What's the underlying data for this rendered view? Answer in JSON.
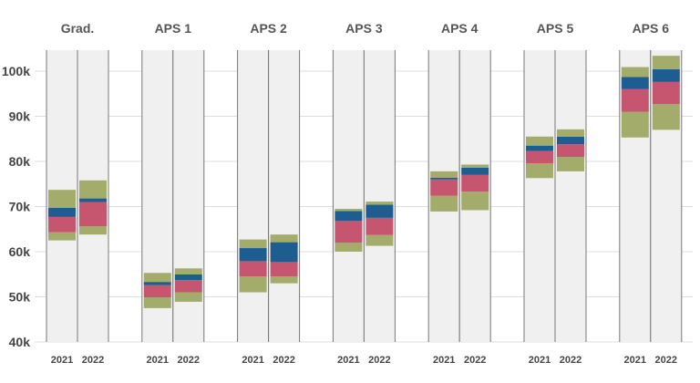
{
  "chart_data": {
    "type": "stacked-range-bar",
    "title": "",
    "xlabel": "",
    "ylabel": "",
    "ylim": [
      40000,
      105000
    ],
    "y_ticks": [
      {
        "value": 40000,
        "label": "40k"
      },
      {
        "value": 50000,
        "label": "50k"
      },
      {
        "value": 60000,
        "label": "60k"
      },
      {
        "value": 70000,
        "label": "70k"
      },
      {
        "value": 80000,
        "label": "80k"
      },
      {
        "value": 90000,
        "label": "90k"
      },
      {
        "value": 100000,
        "label": "100k"
      }
    ],
    "grid": true,
    "legend": "none",
    "band_colors": {
      "min_to_p25": "#a3ac6a",
      "p25_to_median": "#c65670",
      "median_to_p75": "#1d5d8f",
      "p75_to_max": "#a3ac6a",
      "column_background": "#f0f0f0",
      "column_border": "#777777",
      "gridline": "#dddddd"
    },
    "bands": [
      "min",
      "p25",
      "median",
      "p75",
      "max"
    ],
    "groups": [
      {
        "name": "Grad.",
        "years": [
          {
            "year": "2021",
            "min": 62500,
            "p25": 64300,
            "median": 67700,
            "p75": 69700,
            "max": 73700
          },
          {
            "year": "2022",
            "min": 63800,
            "p25": 65600,
            "median": 71000,
            "p75": 71800,
            "max": 75800
          }
        ]
      },
      {
        "name": "APS 1",
        "years": [
          {
            "year": "2021",
            "min": 47500,
            "p25": 49900,
            "median": 52600,
            "p75": 53300,
            "max": 55300
          },
          {
            "year": "2022",
            "min": 48900,
            "p25": 51000,
            "median": 53700,
            "p75": 55000,
            "max": 56300
          }
        ]
      },
      {
        "name": "APS 2",
        "years": [
          {
            "year": "2021",
            "min": 51000,
            "p25": 54500,
            "median": 57900,
            "p75": 60800,
            "max": 62700
          },
          {
            "year": "2022",
            "min": 53000,
            "p25": 54500,
            "median": 57700,
            "p75": 62100,
            "max": 63800
          }
        ]
      },
      {
        "name": "APS 3",
        "years": [
          {
            "year": "2021",
            "min": 60000,
            "p25": 62000,
            "median": 66800,
            "p75": 69000,
            "max": 69500
          },
          {
            "year": "2022",
            "min": 61300,
            "p25": 63700,
            "median": 67500,
            "p75": 70400,
            "max": 71100
          }
        ]
      },
      {
        "name": "APS 4",
        "years": [
          {
            "year": "2021",
            "min": 68900,
            "p25": 72400,
            "median": 76000,
            "p75": 76400,
            "max": 77800
          },
          {
            "year": "2022",
            "min": 69200,
            "p25": 73300,
            "median": 77000,
            "p75": 78600,
            "max": 79300
          }
        ]
      },
      {
        "name": "APS 5",
        "years": [
          {
            "year": "2021",
            "min": 76300,
            "p25": 79600,
            "median": 82300,
            "p75": 83500,
            "max": 85500
          },
          {
            "year": "2022",
            "min": 77800,
            "p25": 81000,
            "median": 83800,
            "p75": 85500,
            "max": 87100
          }
        ]
      },
      {
        "name": "APS 6",
        "years": [
          {
            "year": "2021",
            "min": 85300,
            "p25": 91000,
            "median": 96000,
            "p75": 98700,
            "max": 100900
          },
          {
            "year": "2022",
            "min": 87000,
            "p25": 92700,
            "median": 97600,
            "p75": 100400,
            "max": 103400
          }
        ]
      }
    ]
  }
}
